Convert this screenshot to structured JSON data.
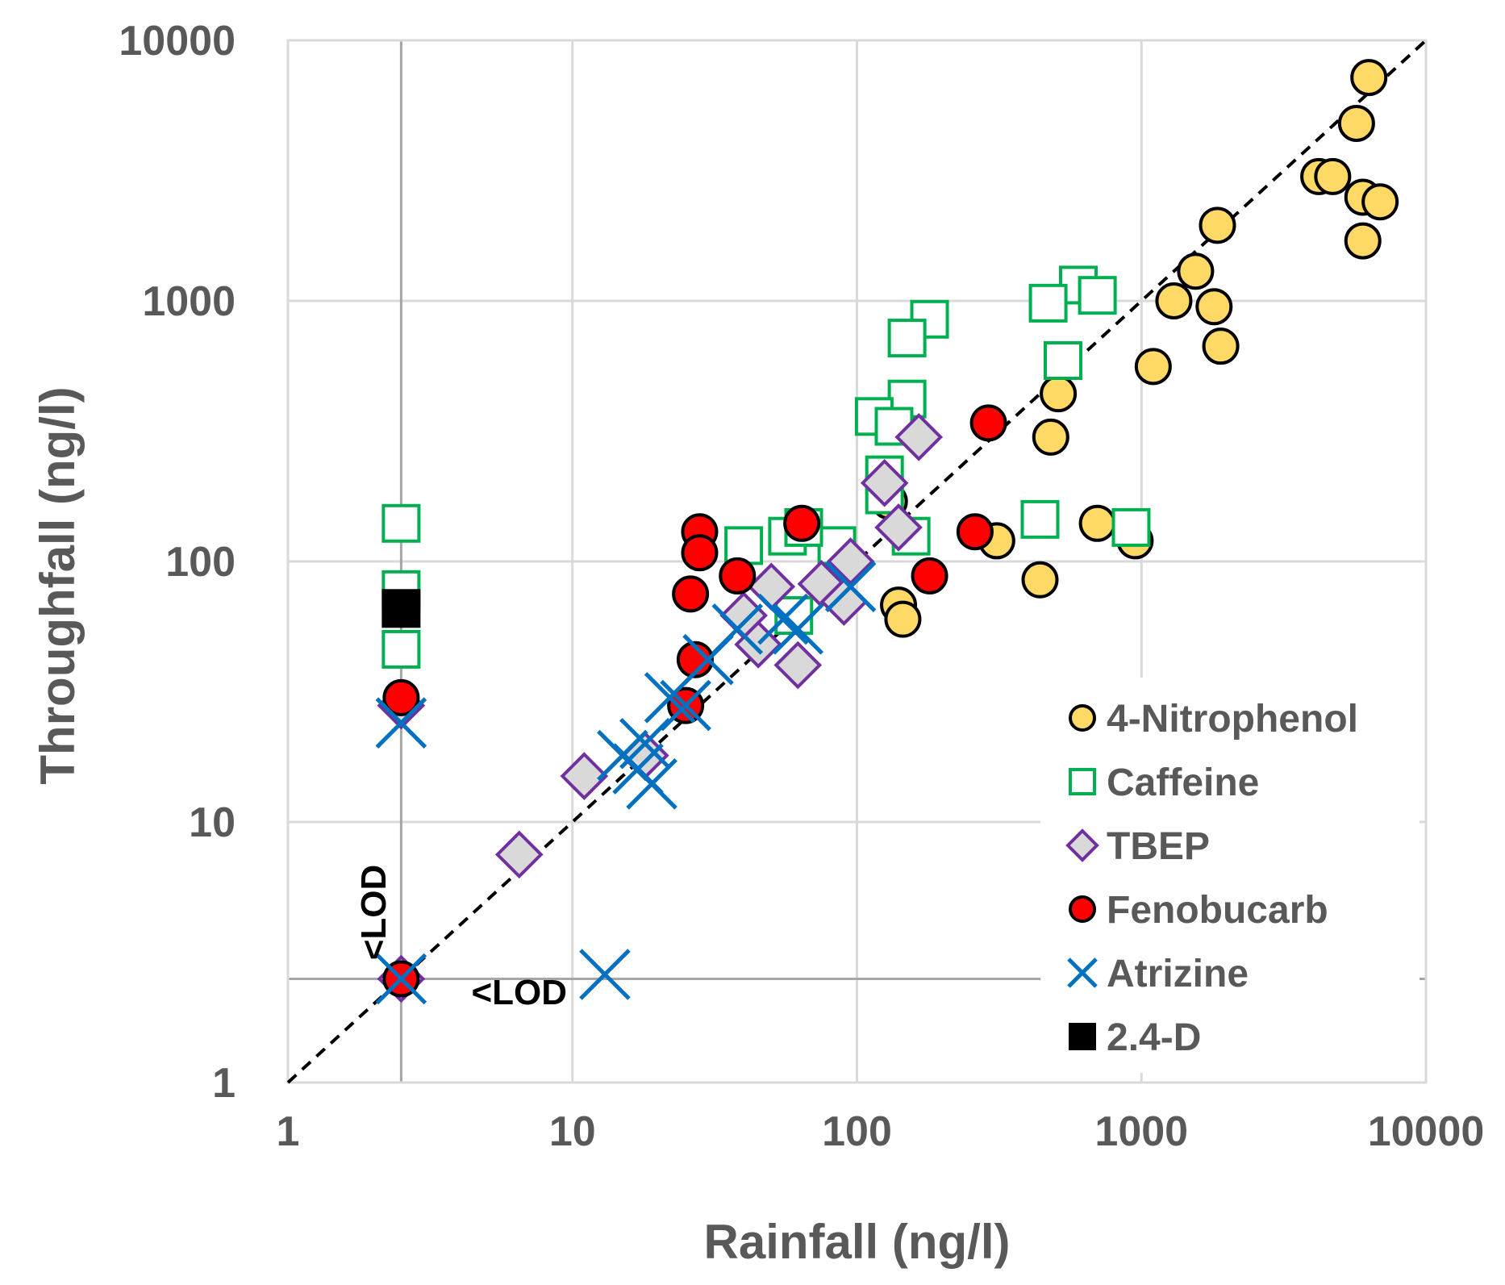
{
  "chart_data": {
    "type": "scatter",
    "xscale": "log",
    "yscale": "log",
    "xlabel": "Rainfall (ng/l)",
    "ylabel": "Throughfall (ng/l)",
    "xlim": [
      1,
      10000
    ],
    "ylim": [
      1,
      10000
    ],
    "xticks": [
      "1",
      "10",
      "100",
      "1000",
      "10000"
    ],
    "yticks": [
      "1",
      "10",
      "100",
      "1000",
      "10000"
    ],
    "grid": true,
    "legend_position": "bottom-right",
    "lod_value": 2.5,
    "reference_line": {
      "type": "1:1",
      "style": "dashed",
      "color": "#000000"
    },
    "annotations": [
      {
        "text": "<LOD",
        "x": 2.2,
        "y": 4.5,
        "rotation": -90
      },
      {
        "text": "<LOD",
        "x": 6.5,
        "y": 2.0,
        "rotation": 0
      }
    ],
    "series": [
      {
        "name": "4-Nitrophenol",
        "marker": "circle",
        "fill": "#ffd966",
        "stroke": "#000000",
        "points": [
          [
            6300,
            7200
          ],
          [
            5700,
            4800
          ],
          [
            4200,
            3000
          ],
          [
            4700,
            3000
          ],
          [
            6000,
            2500
          ],
          [
            6900,
            2400
          ],
          [
            1850,
            1950
          ],
          [
            6000,
            1700
          ],
          [
            1550,
            1300
          ],
          [
            1800,
            950
          ],
          [
            1300,
            1000
          ],
          [
            1900,
            670
          ],
          [
            1100,
            560
          ],
          [
            510,
            440
          ],
          [
            480,
            300
          ],
          [
            700,
            140
          ],
          [
            310,
            120
          ],
          [
            950,
            120
          ],
          [
            440,
            85
          ],
          [
            140,
            68
          ],
          [
            145,
            60
          ],
          [
            130,
            170
          ]
        ]
      },
      {
        "name": "Caffeine",
        "marker": "square",
        "fill": "#ffffff",
        "stroke": "#00b050",
        "points": [
          [
            600,
            1150
          ],
          [
            700,
            1050
          ],
          [
            470,
            980
          ],
          [
            180,
            850
          ],
          [
            150,
            720
          ],
          [
            530,
            590
          ],
          [
            150,
            420
          ],
          [
            115,
            360
          ],
          [
            135,
            330
          ],
          [
            125,
            215
          ],
          [
            125,
            180
          ],
          [
            440,
            145
          ],
          [
            920,
            135
          ],
          [
            155,
            125
          ],
          [
            85,
            115
          ],
          [
            40,
            115
          ],
          [
            57,
            125
          ],
          [
            65,
            135
          ],
          [
            60,
            62
          ],
          [
            2.5,
            140
          ],
          [
            2.5,
            78
          ],
          [
            2.5,
            46
          ]
        ]
      },
      {
        "name": "TBEP",
        "marker": "diamond",
        "fill": "#d9d9d9",
        "stroke": "#7030a0",
        "points": [
          [
            165,
            300
          ],
          [
            125,
            200
          ],
          [
            140,
            135
          ],
          [
            95,
            100
          ],
          [
            75,
            82
          ],
          [
            50,
            80
          ],
          [
            90,
            70
          ],
          [
            40,
            62
          ],
          [
            45,
            48
          ],
          [
            62,
            40
          ],
          [
            18,
            18
          ],
          [
            11,
            15
          ],
          [
            6.5,
            7.5
          ],
          [
            2.5,
            28
          ],
          [
            2.5,
            2.5
          ]
        ]
      },
      {
        "name": "Fenobucarb",
        "marker": "circle",
        "fill": "#ff0000",
        "stroke": "#000000",
        "points": [
          [
            290,
            340
          ],
          [
            260,
            130
          ],
          [
            180,
            88
          ],
          [
            64,
            140
          ],
          [
            28,
            130
          ],
          [
            28,
            108
          ],
          [
            38,
            88
          ],
          [
            26,
            75
          ],
          [
            27,
            42
          ],
          [
            25,
            28
          ],
          [
            2.5,
            30
          ],
          [
            2.5,
            2.5
          ]
        ]
      },
      {
        "name": "Atrizine",
        "marker": "x",
        "fill": "none",
        "stroke": "#0070c0",
        "points": [
          [
            95,
            80
          ],
          [
            62,
            55
          ],
          [
            55,
            60
          ],
          [
            38,
            55
          ],
          [
            30,
            42
          ],
          [
            25,
            28
          ],
          [
            22,
            30
          ],
          [
            18,
            20
          ],
          [
            17,
            16
          ],
          [
            19,
            14
          ],
          [
            15,
            18
          ],
          [
            13,
            2.6
          ],
          [
            2.5,
            24
          ],
          [
            2.5,
            2.5
          ]
        ]
      },
      {
        "name": "2.4-D",
        "marker": "square",
        "fill": "#000000",
        "stroke": "#000000",
        "points": [
          [
            2.5,
            66
          ]
        ]
      }
    ]
  }
}
